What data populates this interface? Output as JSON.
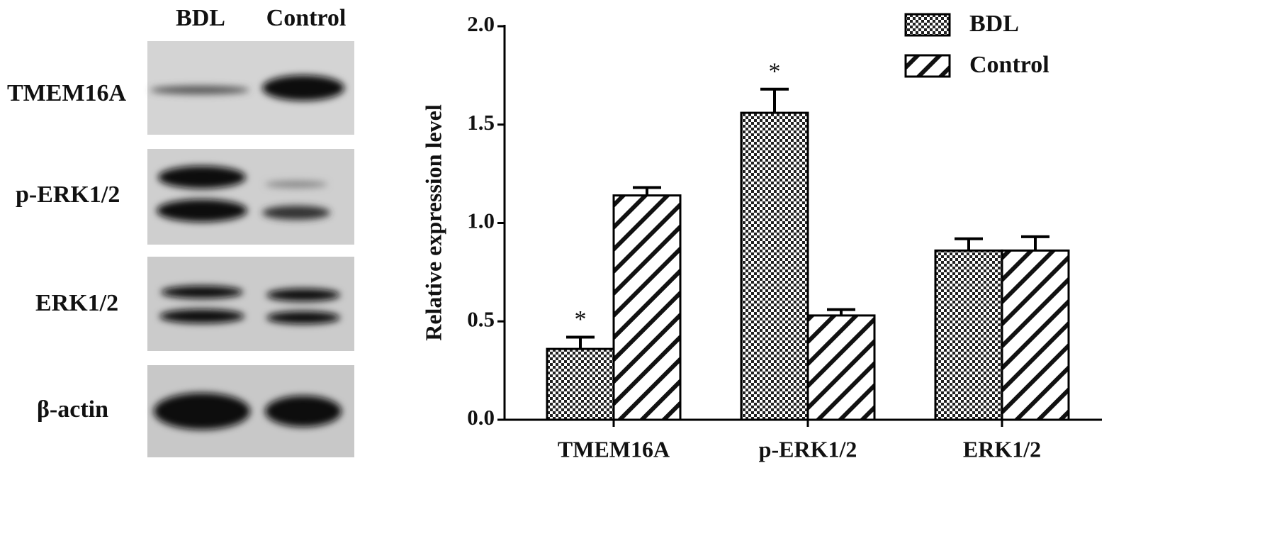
{
  "blot": {
    "lanes": [
      "BDL",
      "Control"
    ],
    "rows": [
      "TMEM16A",
      "p-ERK1/2",
      "ERK1/2",
      "β-actin"
    ]
  },
  "chart_data": {
    "type": "bar",
    "ylabel": "Relative expression level",
    "categories": [
      "TMEM16A",
      "p-ERK1/2",
      "ERK1/2"
    ],
    "series": [
      {
        "name": "BDL",
        "color": "#000000",
        "pattern": "checker",
        "values": [
          0.36,
          1.56,
          0.86
        ],
        "errors": [
          0.06,
          0.12,
          0.06
        ],
        "annotations": [
          "*",
          "*",
          null
        ]
      },
      {
        "name": "Control",
        "color": "#000000",
        "pattern": "hatch",
        "values": [
          1.14,
          0.53,
          0.86
        ],
        "errors": [
          0.04,
          0.03,
          0.07
        ]
      }
    ],
    "ylim": [
      0,
      2
    ],
    "yticks": [
      {
        "value": 0,
        "label": "0.0"
      },
      0.5,
      {
        "value": 1,
        "label": "1.0"
      },
      1.5,
      {
        "value": 2,
        "label": "2.0"
      }
    ],
    "grid": false,
    "legend": "upper right"
  }
}
